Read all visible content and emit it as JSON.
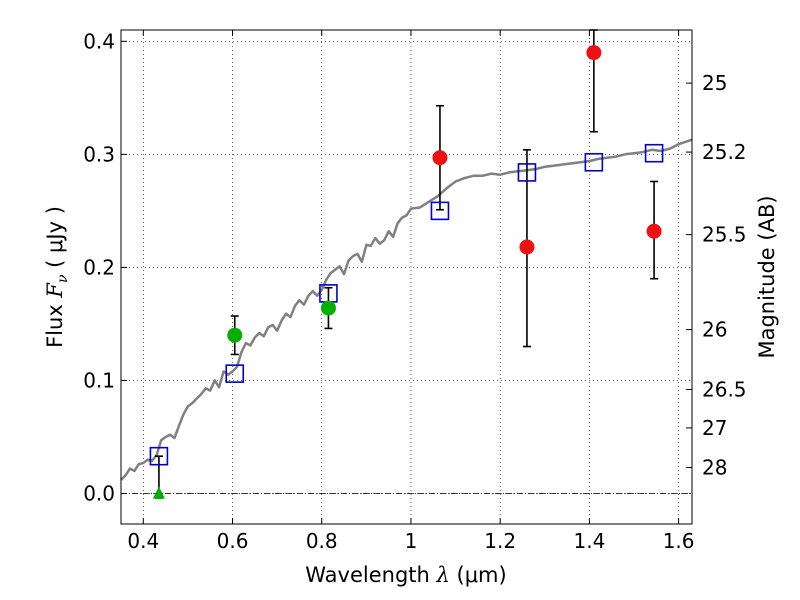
{
  "chart_data": {
    "type": "scatter",
    "xlabel_prefix": "Wavelength  ",
    "xlabel_symbol": "λ",
    "xlabel_units": " (μm)",
    "ylabel_prefix": "Flux  ",
    "ylabel_symbol": "F",
    "ylabel_subscript": "ν",
    "ylabel_units": "  ( μJy )",
    "y2label": "Magnitude (AB)",
    "xlim": [
      0.35,
      1.63
    ],
    "ylim": [
      -0.027,
      0.41
    ],
    "grid": true,
    "x_ticks": [
      0.4,
      0.6,
      0.8,
      1.0,
      1.2,
      1.4,
      1.6
    ],
    "x_tick_labels": [
      "0.4",
      "0.6",
      "0.8",
      "1",
      "1.2",
      "1.4",
      "1.6"
    ],
    "y_ticks": [
      0.0,
      0.1,
      0.2,
      0.3,
      0.4
    ],
    "y_tick_labels": [
      "0.0",
      "0.1",
      "0.2",
      "0.3",
      "0.4"
    ],
    "mag_ticks": [
      {
        "label": "25",
        "y": 0.363
      },
      {
        "label": "25.2",
        "y": 0.302
      },
      {
        "label": "25.5",
        "y": 0.229
      },
      {
        "label": "26",
        "y": 0.145
      },
      {
        "label": "26.5",
        "y": 0.092
      },
      {
        "label": "27",
        "y": 0.058
      },
      {
        "label": "28",
        "y": 0.023
      }
    ],
    "zero_line": 0.0,
    "model_spectrum": {
      "color": "#808080",
      "x": [
        0.35,
        0.36,
        0.37,
        0.38,
        0.39,
        0.4,
        0.41,
        0.42,
        0.43,
        0.44,
        0.45,
        0.46,
        0.47,
        0.48,
        0.49,
        0.5,
        0.51,
        0.52,
        0.53,
        0.54,
        0.55,
        0.56,
        0.57,
        0.58,
        0.59,
        0.6,
        0.61,
        0.62,
        0.63,
        0.64,
        0.65,
        0.66,
        0.67,
        0.68,
        0.69,
        0.7,
        0.71,
        0.72,
        0.73,
        0.74,
        0.75,
        0.76,
        0.77,
        0.78,
        0.79,
        0.8,
        0.81,
        0.82,
        0.83,
        0.84,
        0.85,
        0.86,
        0.87,
        0.88,
        0.89,
        0.9,
        0.91,
        0.92,
        0.93,
        0.94,
        0.95,
        0.96,
        0.97,
        0.98,
        0.99,
        1.0,
        1.02,
        1.04,
        1.06,
        1.08,
        1.1,
        1.12,
        1.14,
        1.16,
        1.18,
        1.2,
        1.22,
        1.24,
        1.26,
        1.28,
        1.3,
        1.32,
        1.34,
        1.36,
        1.38,
        1.4,
        1.42,
        1.44,
        1.46,
        1.48,
        1.5,
        1.52,
        1.54,
        1.56,
        1.58,
        1.6,
        1.63
      ],
      "y": [
        0.012,
        0.016,
        0.022,
        0.02,
        0.026,
        0.027,
        0.03,
        0.029,
        0.034,
        0.047,
        0.05,
        0.052,
        0.049,
        0.06,
        0.07,
        0.077,
        0.08,
        0.084,
        0.088,
        0.093,
        0.091,
        0.1,
        0.094,
        0.108,
        0.105,
        0.108,
        0.112,
        0.125,
        0.133,
        0.131,
        0.138,
        0.142,
        0.139,
        0.147,
        0.149,
        0.144,
        0.153,
        0.159,
        0.156,
        0.166,
        0.171,
        0.167,
        0.175,
        0.179,
        0.175,
        0.18,
        0.189,
        0.195,
        0.198,
        0.201,
        0.194,
        0.206,
        0.21,
        0.212,
        0.205,
        0.22,
        0.219,
        0.226,
        0.221,
        0.224,
        0.232,
        0.227,
        0.239,
        0.244,
        0.246,
        0.252,
        0.253,
        0.258,
        0.263,
        0.27,
        0.276,
        0.279,
        0.281,
        0.281,
        0.283,
        0.282,
        0.284,
        0.285,
        0.286,
        0.287,
        0.289,
        0.29,
        0.291,
        0.292,
        0.293,
        0.294,
        0.296,
        0.297,
        0.298,
        0.3,
        0.301,
        0.302,
        0.304,
        0.303,
        0.305,
        0.309,
        0.313
      ]
    },
    "model_points": {
      "color": "#0000cc",
      "x": [
        0.435,
        0.605,
        0.815,
        1.065,
        1.26,
        1.41,
        1.545
      ],
      "y": [
        0.033,
        0.106,
        0.177,
        0.25,
        0.284,
        0.293,
        0.301
      ]
    },
    "detections_green": {
      "color": "#00b000",
      "points": [
        {
          "x": 0.605,
          "y": 0.14,
          "lo": 0.123,
          "hi": 0.157
        },
        {
          "x": 0.815,
          "y": 0.164,
          "lo": 0.146,
          "hi": 0.182
        }
      ]
    },
    "upper_limit_green": {
      "color": "#00b000",
      "points": [
        {
          "x": 0.435,
          "y": 0.0,
          "lo": -0.004,
          "hi": 0.033
        }
      ]
    },
    "detections_red": {
      "color": "#ee1111",
      "points": [
        {
          "x": 1.065,
          "y": 0.297,
          "lo": 0.251,
          "hi": 0.343
        },
        {
          "x": 1.26,
          "y": 0.218,
          "lo": 0.13,
          "hi": 0.304
        },
        {
          "x": 1.41,
          "y": 0.39,
          "lo": 0.32,
          "hi": 0.41
        },
        {
          "x": 1.545,
          "y": 0.232,
          "lo": 0.19,
          "hi": 0.276
        }
      ]
    }
  }
}
